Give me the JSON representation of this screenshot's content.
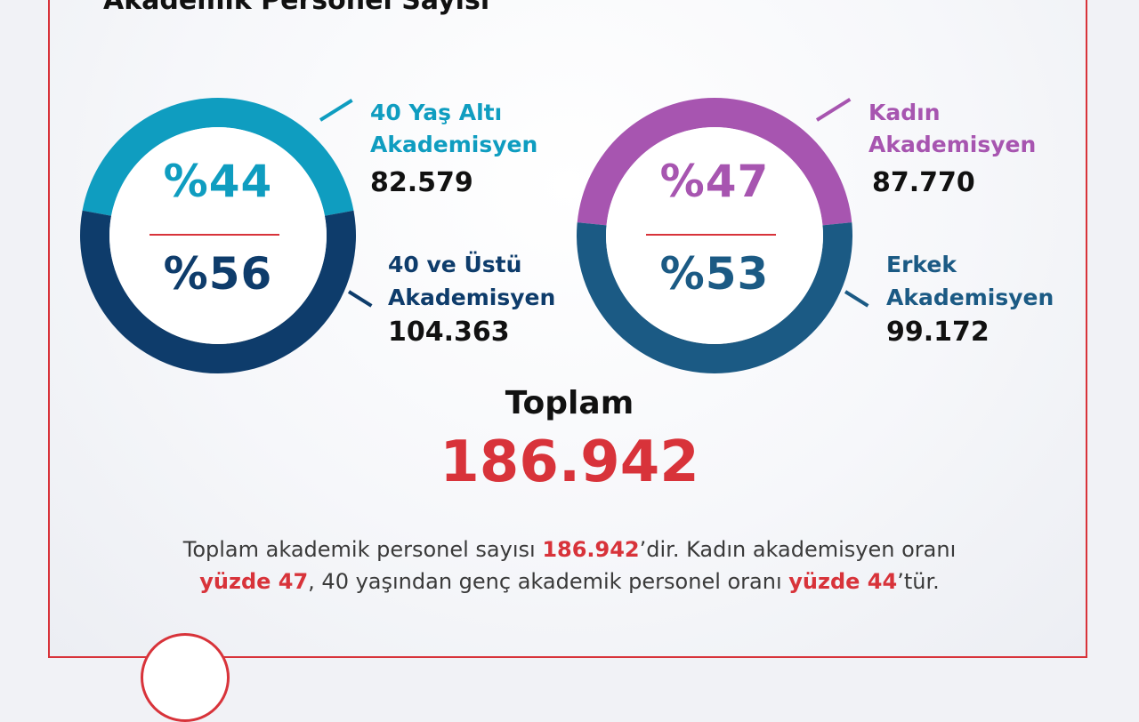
{
  "title": "Akademik Personel Sayısı",
  "colors": {
    "teal": "#0f9dc0",
    "navy": "#0e3c6b",
    "purple": "#a755b0",
    "steel": "#1b5a84",
    "red": "#d8333a"
  },
  "chart_data": [
    {
      "type": "pie",
      "donut": true,
      "categories": [
        "40 Yaş Altı Akademisyen",
        "40 ve Üstü Akademisyen"
      ],
      "values": [
        82579,
        104363
      ],
      "percents": [
        44,
        56
      ],
      "percent_labels": [
        "%44",
        "%56"
      ],
      "labels": [
        {
          "line1": "40 Yaş Altı",
          "line2": "Akademisyen",
          "value_text": "82.579"
        },
        {
          "line1": "40 ve Üstü",
          "line2": "Akademisyen",
          "value_text": "104.363"
        }
      ]
    },
    {
      "type": "pie",
      "donut": true,
      "categories": [
        "Kadın Akademisyen",
        "Erkek Akademisyen"
      ],
      "values": [
        87770,
        99172
      ],
      "percents": [
        47,
        53
      ],
      "percent_labels": [
        "%47",
        "%53"
      ],
      "labels": [
        {
          "line1": "Kadın",
          "line2": "Akademisyen",
          "value_text": "87.770"
        },
        {
          "line1": "Erkek",
          "line2": "Akademisyen",
          "value_text": "99.172"
        }
      ]
    }
  ],
  "total": {
    "label": "Toplam",
    "value": "186.942"
  },
  "summary": {
    "part1": "Toplam akademik personel sayısı ",
    "hl1": "186.942",
    "part2": "’dir. Kadın akademisyen oranı",
    "hl2": "yüzde 47",
    "part3": ",  40 yaşından genç akademik personel oranı ",
    "hl3": "yüzde 44",
    "part4": "’tür."
  }
}
